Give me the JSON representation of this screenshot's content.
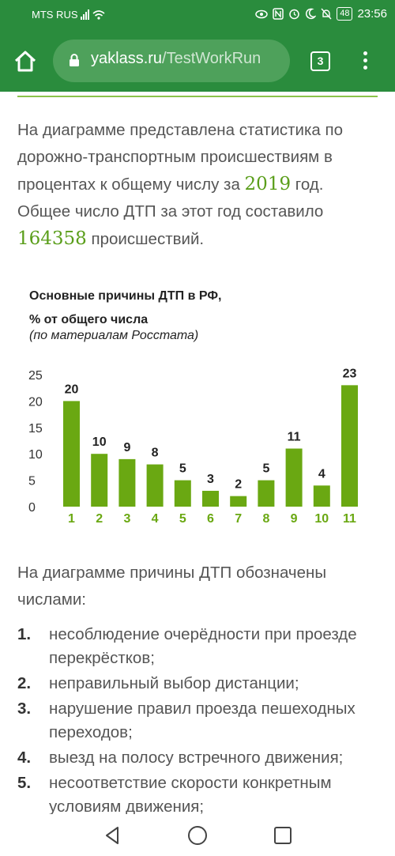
{
  "status_bar": {
    "carrier": "MTS RUS",
    "battery": "48",
    "time": "23:56"
  },
  "browser": {
    "url_domain": "yaklass.ru",
    "url_path": "/TestWorkRun",
    "tab_count": "3"
  },
  "content": {
    "intro_1": "На диаграмме представлена статистика по дорожно-транспортным происшествиям в процентах к общему числу за ",
    "year": "2019",
    "intro_2": " год. Общее число ДТП за этот год составило ",
    "total": "164358",
    "intro_3": " происшествий.",
    "after_chart": "На диаграмме причины ДТП обозначены числами:",
    "reasons": [
      {
        "index": "1.",
        "text": "несоблюдение очерёдности при проезде перекрёстков;"
      },
      {
        "index": "2.",
        "text": "неправильный выбор дистанции;"
      },
      {
        "index": "3.",
        "text": "нарушение правил проезда пешеходных переходов;"
      },
      {
        "index": "4.",
        "text": "выезд на полосу встречного движения;"
      },
      {
        "index": "5.",
        "text": "несоответствие скорости конкретным условиям движения;"
      }
    ]
  },
  "chart_data": {
    "type": "bar",
    "title_line1": "Основные причины ДТП в РФ,",
    "title_line2": "% от общего числа",
    "subtitle": "(по материалам Росстата)",
    "categories": [
      "1",
      "2",
      "3",
      "4",
      "5",
      "6",
      "7",
      "8",
      "9",
      "10",
      "11"
    ],
    "values": [
      20,
      10,
      9,
      8,
      5,
      3,
      2,
      5,
      11,
      4,
      23
    ],
    "y_ticks": [
      0,
      5,
      10,
      15,
      20,
      25
    ],
    "ylim": [
      0,
      25
    ],
    "grid": false,
    "bar_color": "#6aa812",
    "label_color": "#6aa812"
  },
  "colors": {
    "brand_green": "#2a8c3d",
    "accent": "#5a9e1a"
  },
  "icons": {
    "home": "home-icon",
    "lock": "lock-icon",
    "menu": "more-vert-icon",
    "back": "back-triangle-icon",
    "home_nav": "home-circle-icon",
    "recents": "recents-square-icon"
  }
}
